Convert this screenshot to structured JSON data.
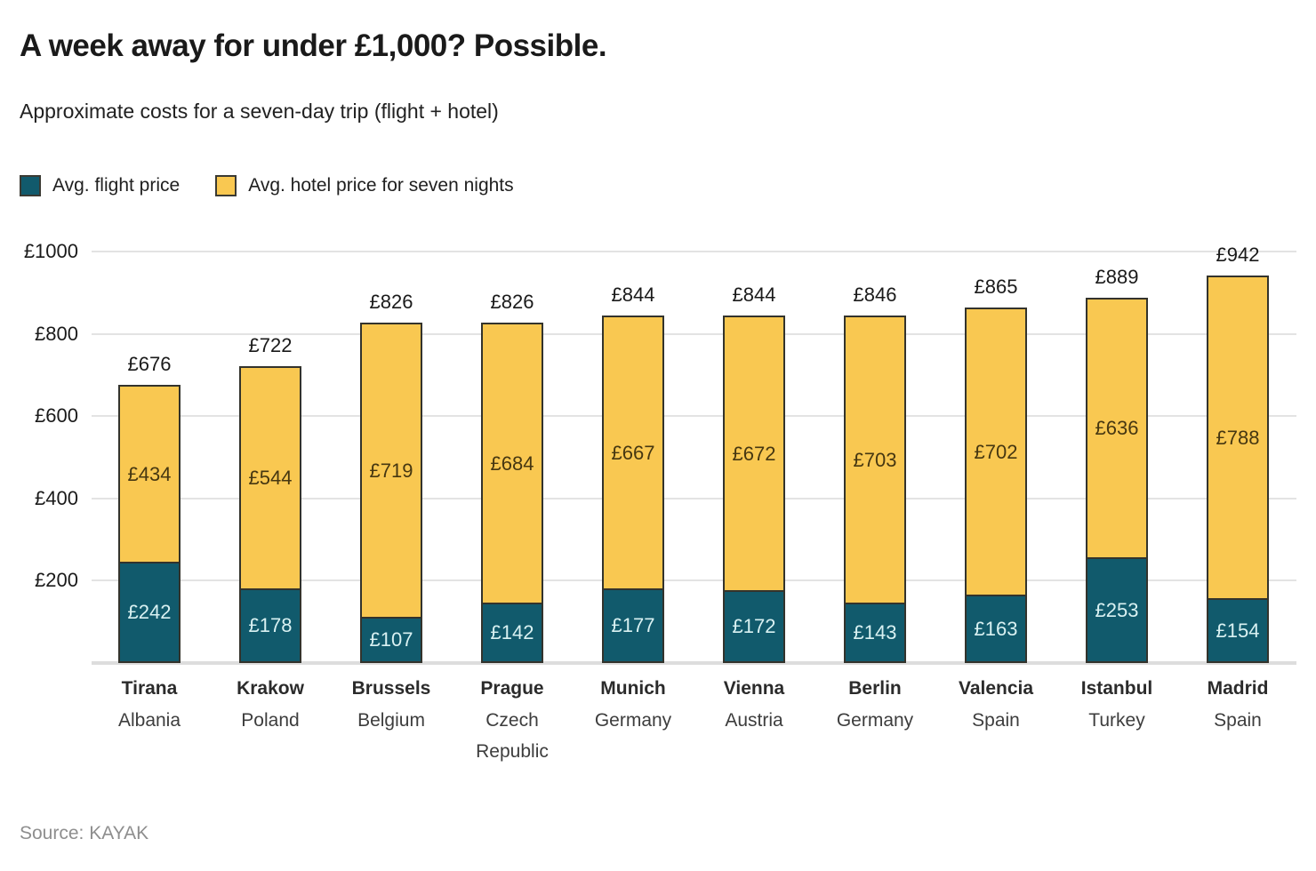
{
  "header": {
    "title": "A week away for under £1,000? Possible.",
    "subtitle": "Approximate costs for a seven-day trip (flight + hotel)"
  },
  "legend": [
    {
      "key": "flight",
      "label": "Avg. flight price",
      "color": "#115a6c"
    },
    {
      "key": "hotel",
      "label": "Avg. hotel price for seven nights",
      "color": "#f9c851"
    }
  ],
  "source": "Source: KAYAK",
  "colors": {
    "flight_bar": "#115a6c",
    "hotel_bar": "#f9c851",
    "bar_outline": "#33332c",
    "flight_value_text": "#d9f1f2",
    "hotel_value_text": "#463711",
    "gridline": "#e3e3e3"
  },
  "chart_data": {
    "type": "bar",
    "stacked": true,
    "currency": "£",
    "title": "A week away for under £1,000? Possible.",
    "subtitle": "Approximate costs for a seven-day trip (flight + hotel)",
    "xlabel": "",
    "ylabel": "",
    "ylim": [
      0,
      1000
    ],
    "grid": true,
    "legend_position": "top",
    "yticks": [
      {
        "value": 1000,
        "label": "£1000"
      },
      {
        "value": 800,
        "label": "£800"
      },
      {
        "value": 600,
        "label": "£600"
      },
      {
        "value": 400,
        "label": "£400"
      },
      {
        "value": 200,
        "label": "£200"
      }
    ],
    "categories": [
      {
        "city": "Tirana",
        "country": "Albania"
      },
      {
        "city": "Krakow",
        "country": "Poland"
      },
      {
        "city": "Brussels",
        "country": "Belgium"
      },
      {
        "city": "Prague",
        "country": "Czech Republic"
      },
      {
        "city": "Munich",
        "country": "Germany"
      },
      {
        "city": "Vienna",
        "country": "Austria"
      },
      {
        "city": "Berlin",
        "country": "Germany"
      },
      {
        "city": "Valencia",
        "country": "Spain"
      },
      {
        "city": "Istanbul",
        "country": "Turkey"
      },
      {
        "city": "Madrid",
        "country": "Spain"
      }
    ],
    "series": [
      {
        "name": "Avg. flight price",
        "color": "#115a6c",
        "values": [
          242,
          178,
          107,
          142,
          177,
          172,
          143,
          163,
          253,
          154
        ]
      },
      {
        "name": "Avg. hotel price for seven nights",
        "color": "#f9c851",
        "values": [
          434,
          544,
          719,
          684,
          667,
          672,
          703,
          702,
          636,
          788
        ]
      }
    ],
    "totals": [
      676,
      722,
      826,
      826,
      844,
      844,
      846,
      865,
      889,
      942
    ]
  }
}
